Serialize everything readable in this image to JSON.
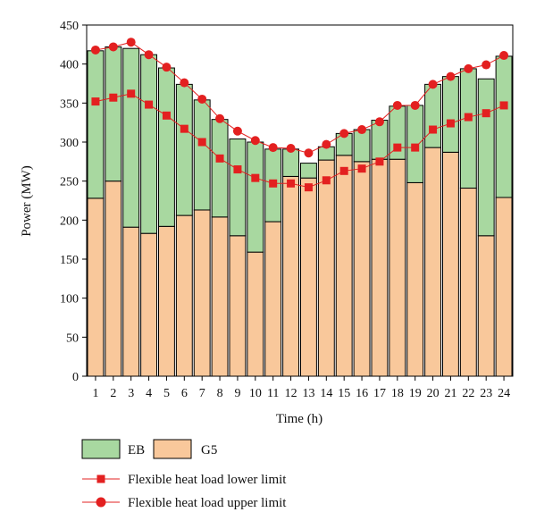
{
  "chart_data": {
    "type": "bar",
    "stacked": true,
    "xlabel": "Time (h)",
    "ylabel": "Power (MW)",
    "ylim": [
      0,
      450
    ],
    "yticks": [
      0,
      50,
      100,
      150,
      200,
      250,
      300,
      350,
      400,
      450
    ],
    "categories": [
      "1",
      "2",
      "3",
      "4",
      "5",
      "6",
      "7",
      "8",
      "9",
      "10",
      "11",
      "12",
      "13",
      "14",
      "15",
      "16",
      "17",
      "18",
      "19",
      "20",
      "21",
      "22",
      "23",
      "24"
    ],
    "series": [
      {
        "name": "G5",
        "kind": "bar",
        "color": "#f9c89b",
        "values": [
          228,
          250,
          191,
          183,
          192,
          206,
          213,
          204,
          180,
          159,
          198,
          256,
          254,
          277,
          283,
          275,
          278,
          278,
          248,
          293,
          287,
          241,
          180,
          229
        ]
      },
      {
        "name": "EB",
        "kind": "bar",
        "color": "#a8d8a0",
        "values": [
          189,
          172,
          229,
          229,
          203,
          168,
          141,
          125,
          124,
          141,
          93,
          35,
          19,
          17,
          28,
          41,
          50,
          68,
          99,
          81,
          97,
          153,
          201,
          181
        ]
      },
      {
        "name": "Flexible heat load lower limit",
        "kind": "line",
        "marker": "square",
        "color": "#e32020",
        "values": [
          352,
          357,
          362,
          348,
          334,
          317,
          300,
          279,
          265,
          254,
          247,
          247,
          242,
          251,
          263,
          266,
          275,
          293,
          293,
          316,
          324,
          332,
          337,
          347
        ]
      },
      {
        "name": "Flexible heat load upper limit",
        "kind": "line",
        "marker": "circle",
        "color": "#e32020",
        "values": [
          418,
          422,
          428,
          412,
          396,
          376,
          355,
          330,
          314,
          302,
          293,
          292,
          286,
          297,
          311,
          316,
          326,
          347,
          347,
          374,
          384,
          394,
          399,
          411
        ]
      }
    ],
    "legend": {
      "position": "bottom",
      "items": [
        "EB",
        "G5",
        "Flexible heat load lower limit",
        "Flexible heat load upper limit"
      ]
    }
  }
}
